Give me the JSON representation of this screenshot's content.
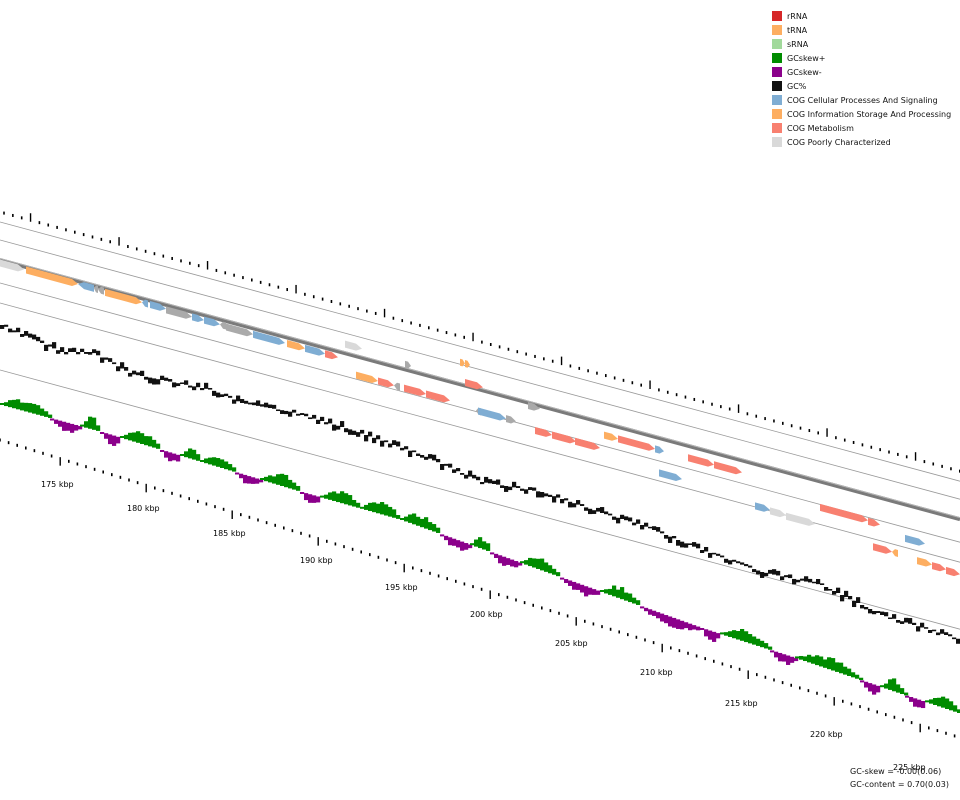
{
  "legend": [
    {
      "label": "rRNA",
      "color": "#d62728"
    },
    {
      "label": "tRNA",
      "color": "#fdae61"
    },
    {
      "label": "sRNA",
      "color": "#a1d99b"
    },
    {
      "label": "GCskew+",
      "color": "#008c00"
    },
    {
      "label": "GCskew-",
      "color": "#8b008b"
    },
    {
      "label": "GC%",
      "color": "#111111"
    },
    {
      "label": "COG Cellular Processes And Signaling",
      "color": "#7fadd3"
    },
    {
      "label": "COG Information Storage And Processing",
      "color": "#fdae61"
    },
    {
      "label": "COG Metabolism",
      "color": "#f88070"
    },
    {
      "label": "COG Poorly Characterized",
      "color": "#d9d9d9"
    }
  ],
  "scale_labels": [
    "175 kbp",
    "180 kbp",
    "185 kbp",
    "190 kbp",
    "195 kbp",
    "200 kbp",
    "205 kbp",
    "210 kbp",
    "215 kbp",
    "220 kbp",
    "225 kbp"
  ],
  "stats": {
    "gc_skew": "GC-skew = -0.00(0.06)",
    "gc_content": "GC-content = 0.70(0.03)"
  }
}
